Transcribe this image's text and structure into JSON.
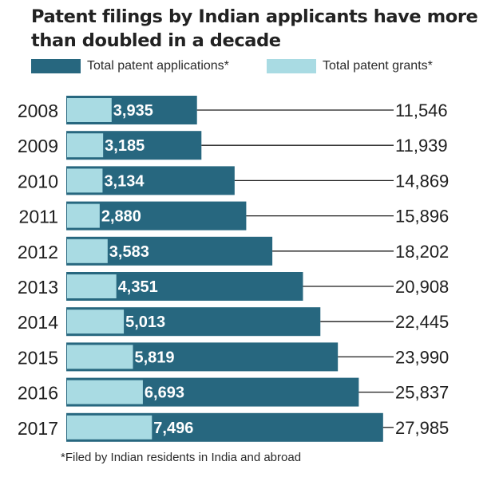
{
  "title": "Patent filings by Indian applicants have more than doubled in a decade",
  "legend": [
    {
      "label": "Total patent applications*",
      "color": "#27677f"
    },
    {
      "label": "Total patent grants*",
      "color": "#a9dbe3"
    }
  ],
  "footnote": "*Filed by Indian residents in India and abroad",
  "chart_data": {
    "type": "bar",
    "orientation": "horizontal",
    "title": "Patent filings by Indian applicants have more than doubled in a decade",
    "categories": [
      "2008",
      "2009",
      "2010",
      "2011",
      "2012",
      "2013",
      "2014",
      "2015",
      "2016",
      "2017"
    ],
    "series": [
      {
        "name": "Total patent applications*",
        "color": "#27677f",
        "values": [
          11546,
          11939,
          14869,
          15896,
          18202,
          20908,
          22445,
          23990,
          25837,
          27985
        ],
        "labels": [
          "11,546",
          "11,939",
          "14,869",
          "15,896",
          "18,202",
          "20,908",
          "22,445",
          "23,990",
          "25,837",
          "27,985"
        ]
      },
      {
        "name": "Total patent grants*",
        "color": "#a9dbe3",
        "values": [
          3935,
          3185,
          3134,
          2880,
          3583,
          4351,
          5013,
          5819,
          6693,
          7496
        ],
        "labels": [
          "3,935",
          "3,185",
          "3,134",
          "2,880",
          "3,583",
          "4,351",
          "5,013",
          "5,819",
          "6,693",
          "7,496"
        ]
      }
    ],
    "xlabel": "",
    "ylabel": "",
    "xlim": [
      0,
      28000
    ],
    "grid": false,
    "legend_position": "top"
  }
}
